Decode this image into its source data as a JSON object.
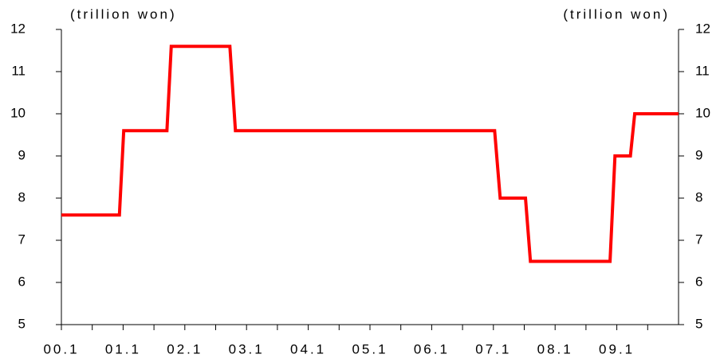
{
  "chart_data": {
    "type": "line",
    "y_label": "(trillion won)",
    "y2_label": "(trillion won)",
    "x": [
      2000,
      2000.94,
      2001.01,
      2001.71,
      2001.78,
      2002.73,
      2002.82,
      2007.02,
      2007.11,
      2007.52,
      2007.6,
      2008.89,
      2008.97,
      2009.22,
      2009.29,
      2010
    ],
    "series": [
      {
        "name": "trillion won",
        "color": "#ff0000",
        "values": [
          7.6,
          7.6,
          9.6,
          9.6,
          11.6,
          11.6,
          9.6,
          9.6,
          8.0,
          8.0,
          6.5,
          6.5,
          9.0,
          9.0,
          10.0,
          10.0
        ]
      }
    ],
    "xlim": [
      2000,
      2010
    ],
    "xticks": [
      {
        "value": 2000,
        "label": "00.1"
      },
      {
        "value": 2001,
        "label": "01.1"
      },
      {
        "value": 2002,
        "label": "02.1"
      },
      {
        "value": 2003,
        "label": "03.1"
      },
      {
        "value": 2004,
        "label": "04.1"
      },
      {
        "value": 2005,
        "label": "05.1"
      },
      {
        "value": 2006,
        "label": "06.1"
      },
      {
        "value": 2007,
        "label": "07.1"
      },
      {
        "value": 2008,
        "label": "08.1"
      },
      {
        "value": 2009,
        "label": "09.1"
      }
    ],
    "minor_xticks": [
      2000.5,
      2001.5,
      2002.5,
      2003.5,
      2004.5,
      2005.5,
      2006.5,
      2007.5,
      2008.5,
      2009.5
    ],
    "ylim": [
      5,
      12
    ],
    "yticks": [
      5,
      6,
      7,
      8,
      9,
      10,
      11,
      12
    ],
    "y2lim": [
      5,
      12
    ],
    "y2ticks": [
      5,
      6,
      7,
      8,
      9,
      10,
      11,
      12
    ]
  }
}
